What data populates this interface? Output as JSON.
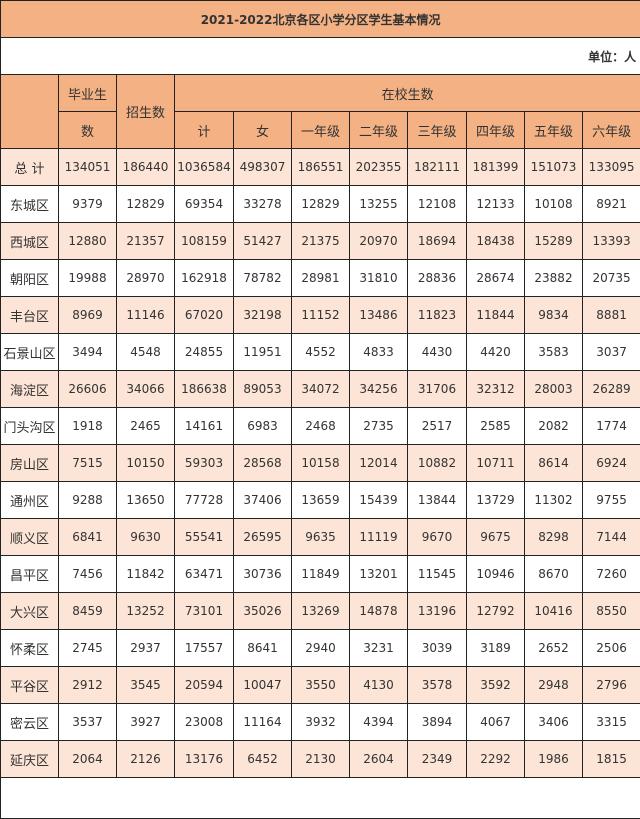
{
  "title": "2021-2022北京各区小学分区学生基本情况",
  "unit": "单位：人",
  "headers": {
    "graduates_top": "毕业生",
    "graduates_bottom": "数",
    "enrollment": "招生数",
    "in_school": "在校生数",
    "sub": [
      "计",
      "女",
      "一年级",
      "二年级",
      "三年级",
      "四年级",
      "五年级",
      "六年级"
    ]
  },
  "rows": [
    {
      "name": "总 计",
      "v": [
        "134051",
        "186440",
        "1036584",
        "498307",
        "186551",
        "202355",
        "182111",
        "181399",
        "151073",
        "133095"
      ]
    },
    {
      "name": "东城区",
      "v": [
        "9379",
        "12829",
        "69354",
        "33278",
        "12829",
        "13255",
        "12108",
        "12133",
        "10108",
        "8921"
      ]
    },
    {
      "name": "西城区",
      "v": [
        "12880",
        "21357",
        "108159",
        "51427",
        "21375",
        "20970",
        "18694",
        "18438",
        "15289",
        "13393"
      ]
    },
    {
      "name": "朝阳区",
      "v": [
        "19988",
        "28970",
        "162918",
        "78782",
        "28981",
        "31810",
        "28836",
        "28674",
        "23882",
        "20735"
      ]
    },
    {
      "name": "丰台区",
      "v": [
        "8969",
        "11146",
        "67020",
        "32198",
        "11152",
        "13486",
        "11823",
        "11844",
        "9834",
        "8881"
      ]
    },
    {
      "name": "石景山区",
      "v": [
        "3494",
        "4548",
        "24855",
        "11951",
        "4552",
        "4833",
        "4430",
        "4420",
        "3583",
        "3037"
      ]
    },
    {
      "name": "海淀区",
      "v": [
        "26606",
        "34066",
        "186638",
        "89053",
        "34072",
        "34256",
        "31706",
        "32312",
        "28003",
        "26289"
      ]
    },
    {
      "name": "门头沟区",
      "v": [
        "1918",
        "2465",
        "14161",
        "6983",
        "2468",
        "2735",
        "2517",
        "2585",
        "2082",
        "1774"
      ]
    },
    {
      "name": "房山区",
      "v": [
        "7515",
        "10150",
        "59303",
        "28568",
        "10158",
        "12014",
        "10882",
        "10711",
        "8614",
        "6924"
      ]
    },
    {
      "name": "通州区",
      "v": [
        "9288",
        "13650",
        "77728",
        "37406",
        "13659",
        "15439",
        "13844",
        "13729",
        "11302",
        "9755"
      ]
    },
    {
      "name": "顺义区",
      "v": [
        "6841",
        "9630",
        "55541",
        "26595",
        "9635",
        "11119",
        "9670",
        "9675",
        "8298",
        "7144"
      ]
    },
    {
      "name": "昌平区",
      "v": [
        "7456",
        "11842",
        "63471",
        "30736",
        "11849",
        "13201",
        "11545",
        "10946",
        "8670",
        "7260"
      ]
    },
    {
      "name": "大兴区",
      "v": [
        "8459",
        "13252",
        "73101",
        "35026",
        "13269",
        "14878",
        "13196",
        "12792",
        "10416",
        "8550"
      ]
    },
    {
      "name": "怀柔区",
      "v": [
        "2745",
        "2937",
        "17557",
        "8641",
        "2940",
        "3231",
        "3039",
        "3189",
        "2652",
        "2506"
      ]
    },
    {
      "name": "平谷区",
      "v": [
        "2912",
        "3545",
        "20594",
        "10047",
        "3550",
        "4130",
        "3578",
        "3592",
        "2948",
        "2796"
      ]
    },
    {
      "name": "密云区",
      "v": [
        "3537",
        "3927",
        "23008",
        "11164",
        "3932",
        "4394",
        "3894",
        "4067",
        "3406",
        "3315"
      ]
    },
    {
      "name": "延庆区",
      "v": [
        "2064",
        "2126",
        "13176",
        "6452",
        "2130",
        "2604",
        "2349",
        "2292",
        "1986",
        "1815"
      ]
    }
  ],
  "colors": {
    "header": "#f4b183",
    "row_alt": "#fce4d6",
    "row": "#ffffff"
  }
}
